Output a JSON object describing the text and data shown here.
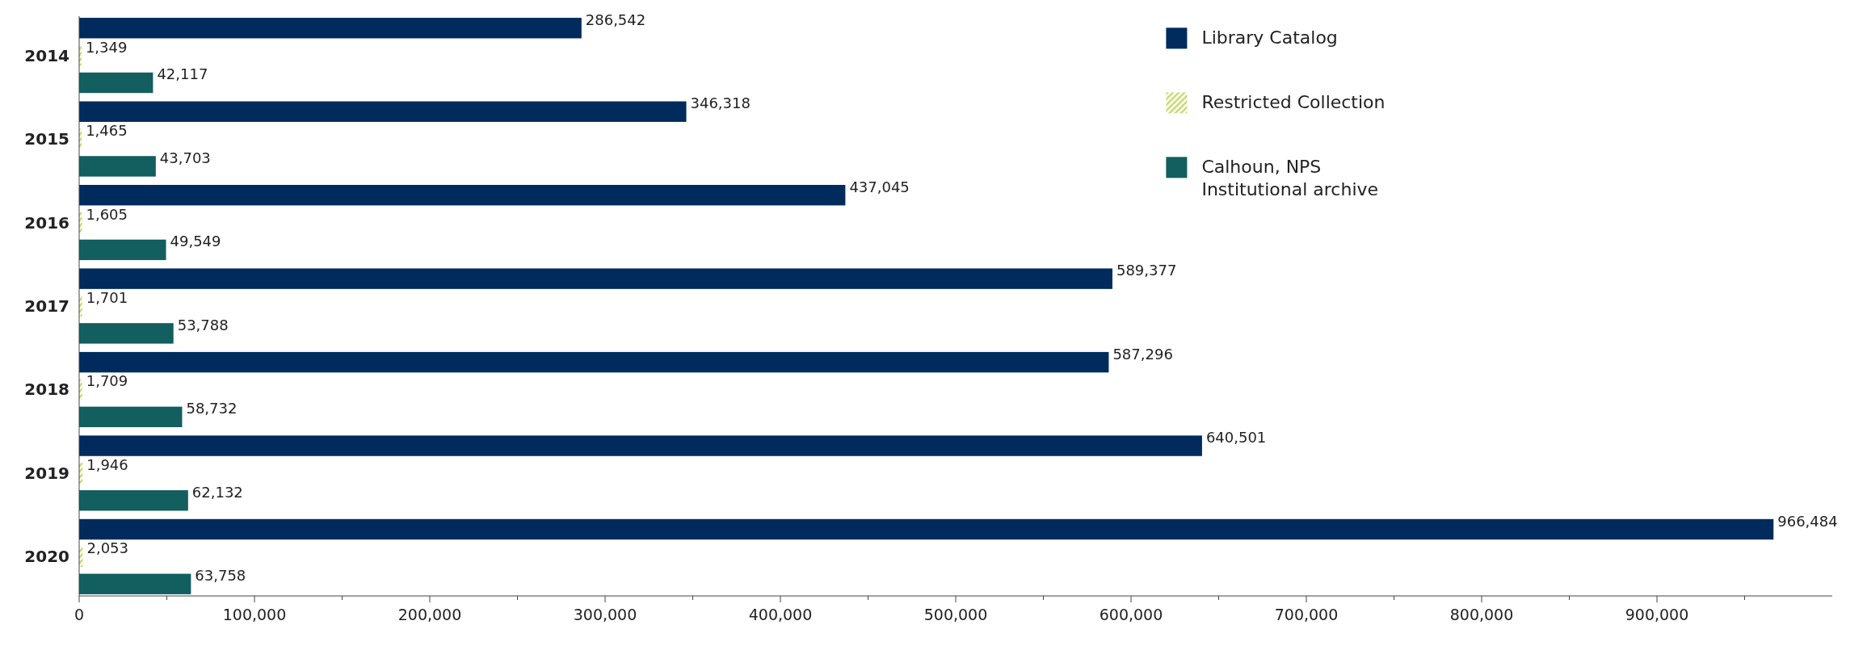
{
  "chart_data": {
    "type": "bar",
    "orientation": "horizontal",
    "categories": [
      "2014",
      "2015",
      "2016",
      "2017",
      "2018",
      "2019",
      "2020"
    ],
    "series": [
      {
        "name": "Library Catalog",
        "color": "#002b5c",
        "values": [
          286542,
          346318,
          437045,
          589377,
          587296,
          640501,
          966484
        ],
        "value_labels": [
          "286,542",
          "346,318",
          "437,045",
          "589,377",
          "587,296",
          "640,501",
          "966,484"
        ]
      },
      {
        "name": "Restricted Collection",
        "color": "#c8d96f",
        "values": [
          1349,
          1465,
          1605,
          1701,
          1709,
          1946,
          2053
        ],
        "value_labels": [
          "1,349",
          "1,465",
          "1,605",
          "1,701",
          "1,709",
          "1,946",
          "2,053"
        ]
      },
      {
        "name": "Calhoun, NPS Institutional archive",
        "color": "#135e5e",
        "values": [
          42117,
          43703,
          49549,
          53788,
          58732,
          62132,
          63758
        ],
        "value_labels": [
          "42,117",
          "43,703",
          "49,549",
          "53,788",
          "58,732",
          "62,132",
          "63,758"
        ]
      }
    ],
    "xlim": [
      0,
      1000000
    ],
    "xticks": [
      0,
      {
        "value": 50000,
        "label": null
      },
      {
        "value": 100000,
        "label": "100,000"
      },
      {
        "value": 150000,
        "label": null
      },
      {
        "value": 200000,
        "label": "200,000"
      },
      {
        "value": 250000,
        "label": null
      },
      {
        "value": 300000,
        "label": "300,000"
      },
      {
        "value": 350000,
        "label": null
      },
      {
        "value": 400000,
        "label": "400,000"
      },
      {
        "value": 450000,
        "label": null
      },
      {
        "value": 500000,
        "label": "500,000"
      },
      {
        "value": 550000,
        "label": null
      },
      {
        "value": 600000,
        "label": "600,000"
      },
      {
        "value": 650000,
        "label": null
      },
      {
        "value": 700000,
        "label": "700,000"
      },
      {
        "value": 750000,
        "label": null
      },
      {
        "value": 800000,
        "label": "800,000"
      },
      {
        "value": 850000,
        "label": null
      },
      {
        "value": 900000,
        "label": "900,000"
      },
      {
        "value": 950000,
        "label": null
      }
    ],
    "legend": "top right",
    "grid": false
  }
}
